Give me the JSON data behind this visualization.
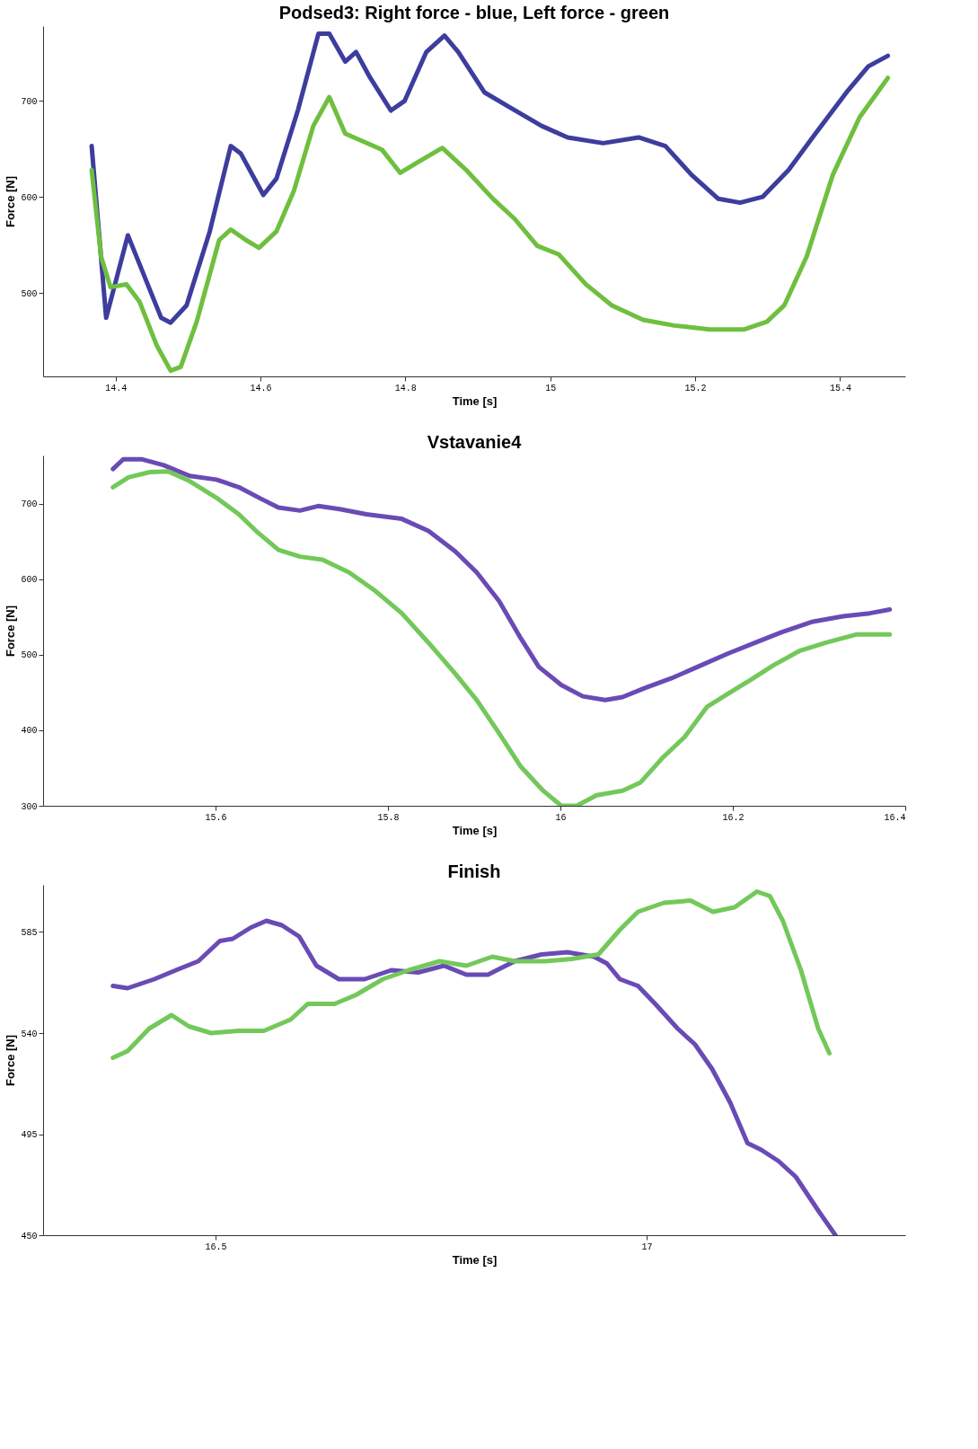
{
  "chart_data": [
    {
      "type": "line",
      "title": "Podsed3: Right force - blue, Left force - green",
      "xlabel": "Time [s]",
      "ylabel": "Force [N]",
      "line_style": "solid",
      "xlim": [
        14.3,
        15.49
      ],
      "ylim": [
        413,
        778
      ],
      "xticks": [
        14.4,
        14.6,
        14.8,
        15,
        15.2,
        15.4
      ],
      "yticks": [
        500,
        600,
        700
      ],
      "series": [
        {
          "color": "#3d3d9e",
          "x": [
            14.367,
            14.387,
            14.417,
            14.463,
            14.476,
            14.498,
            14.53,
            14.559,
            14.573,
            14.604,
            14.622,
            14.652,
            14.68,
            14.695,
            14.717,
            14.732,
            14.75,
            14.78,
            14.799,
            14.829,
            14.854,
            14.873,
            14.909,
            14.945,
            14.988,
            15.024,
            15.073,
            15.122,
            15.159,
            15.195,
            15.232,
            15.262,
            15.293,
            15.329,
            15.366,
            15.409,
            15.439,
            15.466
          ],
          "values": [
            653,
            474,
            560,
            474,
            469,
            487,
            564,
            653,
            645,
            602,
            619,
            691,
            770,
            770,
            741,
            751,
            726,
            690,
            700,
            751,
            768,
            751,
            709,
            693,
            674,
            662,
            656,
            662,
            653,
            623,
            598,
            594,
            600,
            628,
            666,
            709,
            736,
            747
          ]
        },
        {
          "color": "#6fbf3f",
          "x": [
            14.367,
            14.38,
            14.393,
            14.415,
            14.433,
            14.457,
            14.476,
            14.49,
            14.512,
            14.543,
            14.559,
            14.58,
            14.598,
            14.622,
            14.646,
            14.673,
            14.695,
            14.717,
            14.744,
            14.768,
            14.793,
            14.817,
            14.851,
            14.884,
            14.921,
            14.951,
            14.982,
            15.012,
            15.049,
            15.085,
            15.128,
            15.171,
            15.22,
            15.268,
            15.299,
            15.323,
            15.354,
            15.39,
            15.427,
            15.466
          ],
          "values": [
            628,
            538,
            506,
            509,
            491,
            445,
            419,
            423,
            470,
            555,
            566,
            555,
            547,
            564,
            606,
            674,
            704,
            666,
            657,
            649,
            625,
            636,
            651,
            628,
            598,
            577,
            549,
            540,
            509,
            487,
            472,
            466,
            462,
            462,
            470,
            487,
            538,
            623,
            683,
            724
          ]
        }
      ]
    },
    {
      "type": "line",
      "title": "Vstavanie4",
      "xlabel": "Time [s]",
      "ylabel": "Force [N]",
      "line_style": "solid",
      "xlim": [
        15.4,
        16.4
      ],
      "ylim": [
        300,
        764
      ],
      "xticks": [
        15.6,
        15.8,
        16,
        16.2,
        16.4
      ],
      "yticks": [
        300,
        400,
        500,
        600,
        700
      ],
      "series": [
        {
          "color": "#6a4bb5",
          "x": [
            15.481,
            15.493,
            15.514,
            15.54,
            15.57,
            15.601,
            15.627,
            15.652,
            15.673,
            15.698,
            15.719,
            15.744,
            15.775,
            15.816,
            15.847,
            15.878,
            15.903,
            15.929,
            15.954,
            15.975,
            16.001,
            16.026,
            16.052,
            16.072,
            16.098,
            16.129,
            16.159,
            16.195,
            16.226,
            16.257,
            16.293,
            16.328,
            16.359,
            16.382
          ],
          "values": [
            746,
            759,
            759,
            751,
            737,
            732,
            722,
            707,
            695,
            691,
            697,
            693,
            686,
            680,
            664,
            637,
            609,
            571,
            522,
            484,
            460,
            445,
            440,
            444,
            456,
            469,
            484,
            502,
            516,
            530,
            544,
            551,
            555,
            560
          ]
        },
        {
          "color": "#73c85a",
          "x": [
            15.481,
            15.499,
            15.524,
            15.545,
            15.57,
            15.601,
            15.627,
            15.647,
            15.673,
            15.698,
            15.724,
            15.755,
            15.786,
            15.816,
            15.847,
            15.878,
            15.903,
            15.929,
            15.954,
            15.98,
            16.001,
            16.019,
            16.042,
            16.072,
            16.093,
            16.118,
            16.144,
            16.17,
            16.195,
            16.221,
            16.247,
            16.277,
            16.308,
            16.344,
            16.382
          ],
          "values": [
            722,
            735,
            742,
            743,
            730,
            708,
            686,
            664,
            639,
            630,
            626,
            609,
            584,
            555,
            516,
            475,
            440,
            396,
            352,
            320,
            300,
            300,
            314,
            320,
            331,
            363,
            391,
            431,
            449,
            467,
            486,
            505,
            516,
            527,
            527
          ]
        }
      ]
    },
    {
      "type": "line",
      "title": "Finish",
      "xlabel": "Time [s]",
      "ylabel": "Force [N]",
      "line_style": "solid",
      "xlim": [
        16.3,
        17.3
      ],
      "ylim": [
        450,
        606
      ],
      "xticks": [
        16.5,
        17
      ],
      "yticks": [
        450,
        495,
        540,
        585
      ],
      "series": [
        {
          "color": "#6a4bb5",
          "x": [
            16.381,
            16.398,
            16.429,
            16.454,
            16.48,
            16.505,
            16.52,
            16.541,
            16.559,
            16.577,
            16.597,
            16.617,
            16.643,
            16.673,
            16.704,
            16.735,
            16.765,
            16.791,
            16.816,
            16.847,
            16.878,
            16.908,
            16.939,
            16.954,
            16.969,
            16.99,
            17.01,
            17.036,
            17.056,
            17.076,
            17.097,
            17.117,
            17.133,
            17.153,
            17.173,
            17.199,
            17.219
          ],
          "values": [
            561,
            560,
            564,
            568,
            572,
            581,
            582,
            587,
            590,
            588,
            583,
            570,
            564,
            564,
            568,
            567,
            570,
            566,
            566,
            572,
            575,
            576,
            574,
            571,
            564,
            561,
            553,
            542,
            535,
            524,
            509,
            491,
            488,
            483,
            476,
            461,
            450
          ]
        },
        {
          "color": "#73c85a",
          "x": [
            16.381,
            16.398,
            16.423,
            16.449,
            16.469,
            16.495,
            16.526,
            16.556,
            16.587,
            16.607,
            16.638,
            16.663,
            16.694,
            16.724,
            16.76,
            16.791,
            16.821,
            16.847,
            16.883,
            16.913,
            16.944,
            16.969,
            16.99,
            17.02,
            17.051,
            17.077,
            17.102,
            17.128,
            17.143,
            17.158,
            17.179,
            17.199,
            17.212
          ],
          "values": [
            529,
            532,
            542,
            548,
            543,
            540,
            541,
            541,
            546,
            553,
            553,
            557,
            564,
            568,
            572,
            570,
            574,
            572,
            572,
            573,
            575,
            586,
            594,
            598,
            599,
            594,
            596,
            603,
            601,
            590,
            568,
            542,
            531
          ]
        }
      ]
    }
  ]
}
